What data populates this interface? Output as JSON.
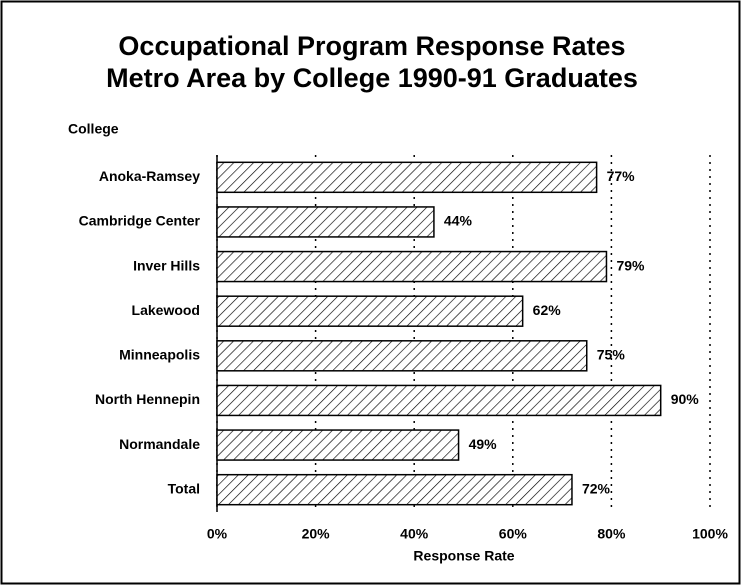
{
  "chart_data": {
    "type": "barh",
    "title": [
      "Occupational Program Response Rates",
      "Metro Area by College 1990-91 Graduates"
    ],
    "y_label": "College",
    "x_label": "Response Rate",
    "categories": [
      "Anoka-Ramsey",
      "Cambridge Center",
      "Inver Hills",
      "Lakewood",
      "Minneapolis",
      "North Hennepin",
      "Normandale",
      "Total"
    ],
    "values": [
      77,
      44,
      79,
      62,
      75,
      90,
      49,
      72
    ],
    "value_labels": [
      "77%",
      "44%",
      "79%",
      "62%",
      "75%",
      "90%",
      "49%",
      "72%"
    ],
    "xlim": [
      0,
      100
    ],
    "xticks": [
      {
        "value": 0,
        "label": "0%"
      },
      {
        "value": 20,
        "label": "20%"
      },
      {
        "value": 40,
        "label": "40%"
      },
      {
        "value": 60,
        "label": "60%"
      },
      {
        "value": 80,
        "label": "80%"
      },
      {
        "value": 100,
        "label": "100%"
      }
    ],
    "grid": true,
    "color": "#000000"
  }
}
